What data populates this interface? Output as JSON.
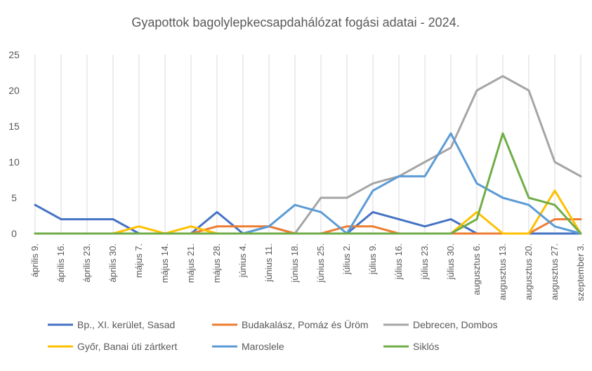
{
  "chart_data": {
    "type": "line",
    "title": "Gyapottok bagolylepkecsapdahálózat fogási adatai - 2024.",
    "xlabel": "",
    "ylabel": "",
    "ylim": [
      0,
      25
    ],
    "yticks": [
      0,
      5,
      10,
      15,
      20,
      25
    ],
    "grid": "vertical",
    "legend_position": "bottom",
    "categories": [
      "április 9.",
      "április 16.",
      "április 23.",
      "április 30.",
      "május 7.",
      "május 14.",
      "május 21.",
      "május 28.",
      "június 4.",
      "június 11.",
      "június 18.",
      "június 25.",
      "július 2.",
      "július 9.",
      "július 16.",
      "július 23.",
      "július 30.",
      "augusztus 6.",
      "augusztus 13.",
      "augusztus 20.",
      "augusztus 27.",
      "szeptember 3."
    ],
    "series": [
      {
        "name": "Bp., XI. kerület, Sasad",
        "color": "#4472C4",
        "values": [
          4,
          2,
          2,
          2,
          0,
          0,
          0,
          3,
          0,
          1,
          0,
          0,
          0,
          3,
          2,
          1,
          2,
          0,
          0,
          0,
          0,
          0
        ]
      },
      {
        "name": "Budakalász, Pomáz és Üröm",
        "color": "#ED7D31",
        "values": [
          0,
          0,
          0,
          0,
          0,
          0,
          0,
          1,
          1,
          1,
          0,
          0,
          1,
          1,
          0,
          0,
          0,
          0,
          0,
          0,
          2,
          2
        ]
      },
      {
        "name": "Debrecen, Dombos",
        "color": "#A5A5A5",
        "values": [
          0,
          0,
          0,
          0,
          0,
          0,
          0,
          0,
          0,
          0,
          0,
          5,
          5,
          7,
          8,
          10,
          12,
          20,
          22,
          20,
          10,
          8
        ]
      },
      {
        "name": "Győr, Banai úti zártkert",
        "color": "#FFC000",
        "values": [
          0,
          0,
          0,
          0,
          1,
          0,
          1,
          0,
          0,
          0,
          0,
          0,
          0,
          0,
          0,
          0,
          0,
          3,
          0,
          0,
          6,
          0
        ]
      },
      {
        "name": "Maroslele",
        "color": "#5B9BD5",
        "values": [
          0,
          0,
          0,
          0,
          0,
          0,
          0,
          0,
          0,
          1,
          4,
          3,
          0,
          6,
          8,
          8,
          14,
          7,
          5,
          4,
          1,
          0
        ]
      },
      {
        "name": "Siklós",
        "color": "#70AD47",
        "values": [
          0,
          0,
          0,
          0,
          0,
          0,
          0,
          0,
          0,
          0,
          0,
          0,
          0,
          0,
          0,
          0,
          0,
          2,
          14,
          5,
          4,
          0
        ]
      }
    ]
  }
}
